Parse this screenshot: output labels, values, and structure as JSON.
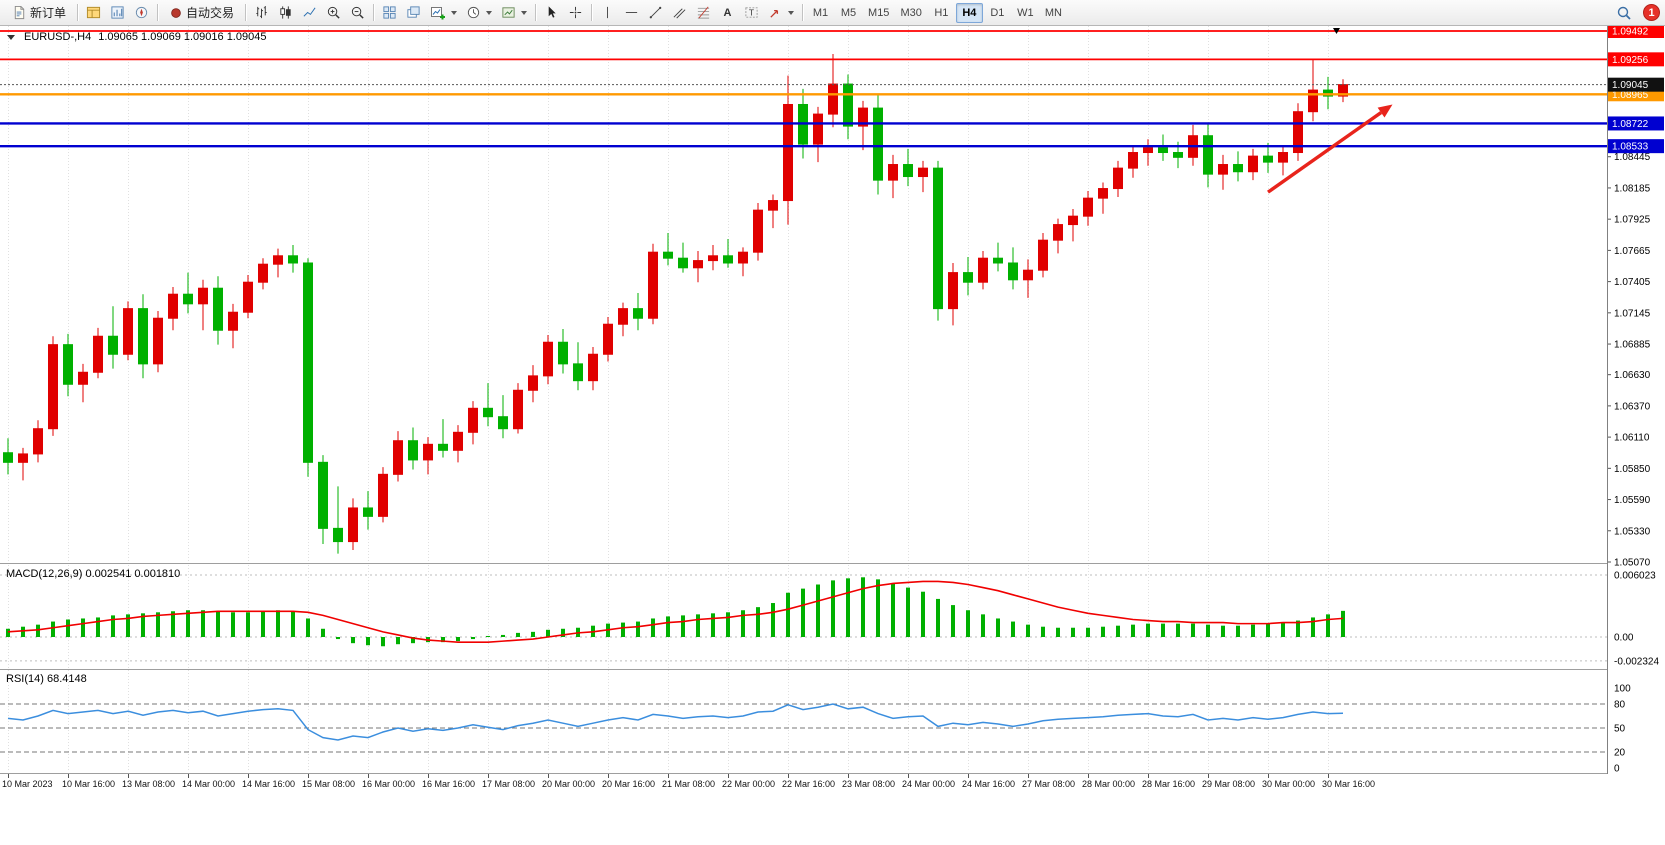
{
  "toolbar": {
    "new_order_label": "新订单",
    "auto_trading_label": "自动交易",
    "timeframes": [
      "M1",
      "M5",
      "M15",
      "M30",
      "H1",
      "H4",
      "D1",
      "W1",
      "MN"
    ],
    "active_timeframe": "H4",
    "notification_count": "1"
  },
  "chart": {
    "symbol_title": "EURUSD-,H4",
    "ohlc": "1.09065 1.09069 1.09016 1.09045",
    "macd_label": "MACD(12,26,9) 0.002541 0.001810",
    "rsi_label": "RSI(14) 68.4148"
  },
  "chart_data": {
    "type": "candlestick",
    "symbol": "EURUSD",
    "timeframe": "H4",
    "colors": {
      "up": "#e00000",
      "down": "#00b000",
      "macd_histogram": "#00b000",
      "macd_signal": "#f00000",
      "rsi_line": "#3b8ede",
      "grid": "#e0e0e0"
    },
    "price_axis": {
      "min": 1.0507,
      "max": 1.09492
    },
    "price_axis_ticks": [
      "1.08445",
      "1.08185",
      "1.07925",
      "1.07665",
      "1.07405",
      "1.07145",
      "1.06885",
      "1.06630",
      "1.06370",
      "1.06110",
      "1.05850",
      "1.05590",
      "1.05330",
      "1.05070"
    ],
    "price_badges": [
      {
        "label": "1.09492",
        "value": 1.09492,
        "color": "#ff0000"
      },
      {
        "label": "1.09256",
        "value": 1.09256,
        "color": "#ff0000"
      },
      {
        "label": "1.08965",
        "value": 1.08965,
        "color": "#ff9900"
      },
      {
        "label": "1.09045",
        "value": 1.09045,
        "color": "#111111"
      },
      {
        "label": "1.08722",
        "value": 1.08722,
        "color": "#0000d0"
      },
      {
        "label": "1.08533",
        "value": 1.08533,
        "color": "#0000d0"
      }
    ],
    "hlines": [
      {
        "value": 1.09492,
        "color": "#ff0000",
        "width": 1.7
      },
      {
        "value": 1.09256,
        "color": "#ff0000",
        "width": 1.7
      },
      {
        "value": 1.08965,
        "color": "#ff9900",
        "width": 2.4
      },
      {
        "value": 1.08722,
        "color": "#0000d0",
        "width": 2.4
      },
      {
        "value": 1.08533,
        "color": "#0000d0",
        "width": 2.4
      }
    ],
    "current_price": 1.09045,
    "time_labels": [
      "10 Mar 2023",
      "10 Mar 16:00",
      "13 Mar 08:00",
      "14 Mar 00:00",
      "14 Mar 16:00",
      "15 Mar 08:00",
      "16 Mar 00:00",
      "16 Mar 16:00",
      "17 Mar 08:00",
      "20 Mar 00:00",
      "20 Mar 16:00",
      "21 Mar 08:00",
      "22 Mar 00:00",
      "22 Mar 16:00",
      "23 Mar 08:00",
      "24 Mar 00:00",
      "24 Mar 16:00",
      "27 Mar 08:00",
      "28 Mar 00:00",
      "28 Mar 16:00",
      "29 Mar 08:00",
      "30 Mar 00:00",
      "30 Mar 16:00"
    ],
    "candles": [
      [
        1.0598,
        1.061,
        1.058,
        1.059
      ],
      [
        1.059,
        1.0602,
        1.0575,
        1.0597
      ],
      [
        1.0597,
        1.0625,
        1.059,
        1.0618
      ],
      [
        1.0618,
        1.0695,
        1.0612,
        1.0688
      ],
      [
        1.0688,
        1.0697,
        1.0645,
        1.0655
      ],
      [
        1.0655,
        1.0672,
        1.064,
        1.0665
      ],
      [
        1.0665,
        1.0702,
        1.066,
        1.0695
      ],
      [
        1.0695,
        1.072,
        1.0668,
        1.068
      ],
      [
        1.068,
        1.0724,
        1.0675,
        1.0718
      ],
      [
        1.0718,
        1.073,
        1.066,
        1.0672
      ],
      [
        1.0672,
        1.0716,
        1.0665,
        1.071
      ],
      [
        1.071,
        1.0736,
        1.07,
        1.073
      ],
      [
        1.073,
        1.0748,
        1.0714,
        1.0722
      ],
      [
        1.0722,
        1.0742,
        1.07,
        1.0735
      ],
      [
        1.0735,
        1.0745,
        1.0688,
        1.07
      ],
      [
        1.07,
        1.0722,
        1.0685,
        1.0715
      ],
      [
        1.0715,
        1.0746,
        1.071,
        1.074
      ],
      [
        1.074,
        1.076,
        1.0734,
        1.0755
      ],
      [
        1.0755,
        1.0768,
        1.0744,
        1.0762
      ],
      [
        1.0762,
        1.0771,
        1.0748,
        1.0756
      ],
      [
        1.0756,
        1.076,
        1.0578,
        1.059
      ],
      [
        1.059,
        1.0596,
        1.0522,
        1.0535
      ],
      [
        1.0535,
        1.057,
        1.0514,
        1.0524
      ],
      [
        1.0524,
        1.056,
        1.0517,
        1.0552
      ],
      [
        1.0552,
        1.0566,
        1.0534,
        1.0545
      ],
      [
        1.0545,
        1.0586,
        1.054,
        1.058
      ],
      [
        1.058,
        1.0616,
        1.0574,
        1.0608
      ],
      [
        1.0608,
        1.0619,
        1.0584,
        1.0592
      ],
      [
        1.0592,
        1.0611,
        1.058,
        1.0605
      ],
      [
        1.0605,
        1.0626,
        1.0594,
        1.06
      ],
      [
        1.06,
        1.0621,
        1.059,
        1.0615
      ],
      [
        1.0615,
        1.0641,
        1.0605,
        1.0635
      ],
      [
        1.0635,
        1.0656,
        1.062,
        1.0628
      ],
      [
        1.0628,
        1.0646,
        1.061,
        1.0618
      ],
      [
        1.0618,
        1.0656,
        1.0614,
        1.065
      ],
      [
        1.065,
        1.0671,
        1.064,
        1.0662
      ],
      [
        1.0662,
        1.0696,
        1.0655,
        1.069
      ],
      [
        1.069,
        1.0701,
        1.0664,
        1.0672
      ],
      [
        1.0672,
        1.069,
        1.065,
        1.0658
      ],
      [
        1.0658,
        1.0686,
        1.065,
        1.068
      ],
      [
        1.068,
        1.0711,
        1.0674,
        1.0705
      ],
      [
        1.0705,
        1.0723,
        1.0695,
        1.0718
      ],
      [
        1.0718,
        1.0731,
        1.07,
        1.071
      ],
      [
        1.071,
        1.0772,
        1.0705,
        1.0765
      ],
      [
        1.0765,
        1.0781,
        1.0754,
        1.076
      ],
      [
        1.076,
        1.0773,
        1.0748,
        1.0752
      ],
      [
        1.0752,
        1.0766,
        1.074,
        1.0758
      ],
      [
        1.0758,
        1.0771,
        1.075,
        1.0762
      ],
      [
        1.0762,
        1.0776,
        1.0752,
        1.0756
      ],
      [
        1.0756,
        1.0769,
        1.0745,
        1.0765
      ],
      [
        1.0765,
        1.0806,
        1.0758,
        1.08
      ],
      [
        1.08,
        1.0813,
        1.0785,
        1.0808
      ],
      [
        1.0808,
        1.0912,
        1.0788,
        1.0888
      ],
      [
        1.0888,
        1.0901,
        1.0843,
        1.0855
      ],
      [
        1.0855,
        1.0886,
        1.084,
        1.088
      ],
      [
        1.088,
        1.093,
        1.0869,
        1.0905
      ],
      [
        1.0905,
        1.0913,
        1.0859,
        1.087
      ],
      [
        1.087,
        1.0891,
        1.085,
        1.0885
      ],
      [
        1.0885,
        1.0896,
        1.0813,
        1.0825
      ],
      [
        1.0825,
        1.0846,
        1.081,
        1.0838
      ],
      [
        1.0838,
        1.0851,
        1.082,
        1.0828
      ],
      [
        1.0828,
        1.0841,
        1.0815,
        1.0835
      ],
      [
        1.0835,
        1.0841,
        1.0708,
        1.0718
      ],
      [
        1.0718,
        1.0756,
        1.0704,
        1.0748
      ],
      [
        1.0748,
        1.0761,
        1.0729,
        1.074
      ],
      [
        1.074,
        1.0766,
        1.0734,
        1.076
      ],
      [
        1.076,
        1.0773,
        1.0749,
        1.0756
      ],
      [
        1.0756,
        1.0769,
        1.0734,
        1.0742
      ],
      [
        1.0742,
        1.0759,
        1.0727,
        1.075
      ],
      [
        1.075,
        1.0781,
        1.0744,
        1.0775
      ],
      [
        1.0775,
        1.0793,
        1.0764,
        1.0788
      ],
      [
        1.0788,
        1.0801,
        1.0774,
        1.0795
      ],
      [
        1.0795,
        1.0816,
        1.0787,
        1.081
      ],
      [
        1.081,
        1.0823,
        1.0797,
        1.0818
      ],
      [
        1.0818,
        1.0841,
        1.0811,
        1.0835
      ],
      [
        1.0835,
        1.0853,
        1.0827,
        1.0848
      ],
      [
        1.0848,
        1.0859,
        1.0837,
        1.0852
      ],
      [
        1.0852,
        1.0863,
        1.0841,
        1.0848
      ],
      [
        1.0848,
        1.0857,
        1.0835,
        1.0844
      ],
      [
        1.0844,
        1.0871,
        1.0837,
        1.0862
      ],
      [
        1.0862,
        1.0873,
        1.0819,
        1.083
      ],
      [
        1.083,
        1.0846,
        1.0817,
        1.0838
      ],
      [
        1.0838,
        1.0849,
        1.0824,
        1.0832
      ],
      [
        1.0832,
        1.0851,
        1.0825,
        1.0845
      ],
      [
        1.0845,
        1.0856,
        1.0831,
        1.084
      ],
      [
        1.084,
        1.0853,
        1.0829,
        1.0848
      ],
      [
        1.0848,
        1.0889,
        1.0841,
        1.0882
      ],
      [
        1.0882,
        1.0926,
        1.0874,
        1.09
      ],
      [
        1.09,
        1.0911,
        1.0884,
        1.0895
      ],
      [
        1.0895,
        1.0909,
        1.089,
        1.09045
      ]
    ],
    "trend_arrow": {
      "from_bar": 84,
      "from_price": 1.0815,
      "to_bar": 92.3,
      "to_price": 1.0888,
      "color": "#e8241c"
    },
    "macd": {
      "label": "MACD(12,26,9) 0.002541 0.001810",
      "axis_labels": [
        "0.006023",
        "0.00",
        "-0.002324"
      ],
      "axis_values": [
        0.006023,
        0,
        -0.002324
      ],
      "histogram": [
        0.0008,
        0.001,
        0.0012,
        0.0015,
        0.0017,
        0.0018,
        0.0019,
        0.0021,
        0.0022,
        0.0023,
        0.0024,
        0.0025,
        0.0026,
        0.0026,
        0.0025,
        0.0024,
        0.0024,
        0.0025,
        0.0026,
        0.0025,
        0.0018,
        0.0008,
        -0.0002,
        -0.0006,
        -0.0008,
        -0.0009,
        -0.0007,
        -0.0006,
        -0.0005,
        -0.0005,
        -0.0004,
        -0.0002,
        0.0001,
        0.0002,
        0.0004,
        0.0005,
        0.0007,
        0.0008,
        0.0009,
        0.0011,
        0.0013,
        0.0014,
        0.0015,
        0.0018,
        0.002,
        0.0021,
        0.0022,
        0.0023,
        0.0024,
        0.0026,
        0.0029,
        0.0033,
        0.0043,
        0.0047,
        0.0051,
        0.0055,
        0.0057,
        0.0058,
        0.0056,
        0.0052,
        0.0048,
        0.0044,
        0.0037,
        0.0031,
        0.0026,
        0.0022,
        0.0018,
        0.0015,
        0.0012,
        0.001,
        0.0009,
        0.0009,
        0.0009,
        0.001,
        0.0011,
        0.0012,
        0.0013,
        0.0013,
        0.0013,
        0.0013,
        0.0012,
        0.0011,
        0.0011,
        0.0012,
        0.0013,
        0.0014,
        0.0016,
        0.0019,
        0.0022,
        0.00254
      ],
      "signal": [
        0.0005,
        0.0006,
        0.0007,
        0.0009,
        0.0011,
        0.0013,
        0.0015,
        0.0017,
        0.0018,
        0.002,
        0.0021,
        0.0022,
        0.0023,
        0.0024,
        0.0025,
        0.0025,
        0.0025,
        0.0025,
        0.0025,
        0.0025,
        0.0024,
        0.0021,
        0.0017,
        0.0013,
        0.0009,
        0.0005,
        0.0002,
        -0.0001,
        -0.0003,
        -0.0004,
        -0.0005,
        -0.0005,
        -0.0005,
        -0.0004,
        -0.0003,
        -0.0002,
        0.0,
        0.0002,
        0.0004,
        0.0005,
        0.0007,
        0.0009,
        0.001,
        0.0012,
        0.0014,
        0.0015,
        0.0017,
        0.0018,
        0.0019,
        0.0021,
        0.0022,
        0.0024,
        0.0027,
        0.0031,
        0.0035,
        0.0039,
        0.0043,
        0.0047,
        0.005,
        0.0052,
        0.0053,
        0.0054,
        0.0054,
        0.0053,
        0.0051,
        0.0048,
        0.0045,
        0.0041,
        0.0037,
        0.0033,
        0.0029,
        0.0026,
        0.0023,
        0.0021,
        0.0019,
        0.0017,
        0.0016,
        0.0015,
        0.0015,
        0.0014,
        0.0014,
        0.0014,
        0.0013,
        0.0013,
        0.0013,
        0.0014,
        0.0014,
        0.0015,
        0.0017,
        0.00181
      ]
    },
    "rsi": {
      "label": "RSI(14) 68.4148",
      "levels": [
        80,
        50,
        20
      ],
      "axis_labels": [
        "100",
        "80",
        "50",
        "20",
        "0"
      ],
      "axis_values": [
        100,
        80,
        50,
        20,
        0
      ],
      "values": [
        62,
        60,
        65,
        72,
        68,
        70,
        72,
        68,
        71,
        66,
        70,
        72,
        69,
        71,
        65,
        68,
        71,
        73,
        74,
        72,
        48,
        38,
        35,
        40,
        38,
        45,
        50,
        46,
        49,
        47,
        50,
        54,
        51,
        48,
        53,
        56,
        60,
        56,
        52,
        56,
        60,
        63,
        60,
        67,
        65,
        62,
        64,
        65,
        63,
        65,
        70,
        71,
        79,
        73,
        76,
        80,
        74,
        76,
        68,
        62,
        64,
        65,
        52,
        56,
        54,
        57,
        55,
        52,
        55,
        59,
        61,
        62,
        63,
        64,
        66,
        67,
        68,
        65,
        64,
        67,
        60,
        62,
        60,
        63,
        61,
        63,
        67,
        70,
        68,
        68.41
      ]
    }
  }
}
